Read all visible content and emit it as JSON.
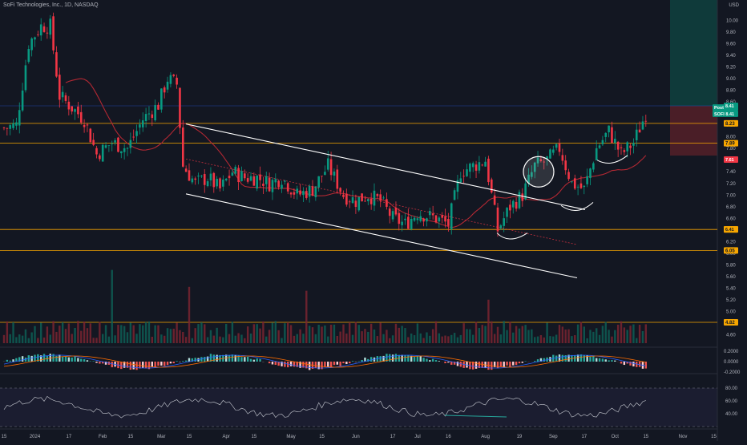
{
  "header": {
    "title": "SoFi Technologies, Inc., 1D, NASDAQ",
    "currency": "USD"
  },
  "chart_data": {
    "type": "candlestick",
    "title": "SoFi Technologies, Inc., 1D, NASDAQ",
    "price_ylim": [
      4.5,
      10.1
    ],
    "price_ticks": [
      "4.60",
      "4.80",
      "5.00",
      "5.20",
      "5.40",
      "5.60",
      "5.80",
      "6.00",
      "6.20",
      "6.40",
      "6.60",
      "6.80",
      "7.00",
      "7.20",
      "7.40",
      "7.60",
      "7.80",
      "8.00",
      "8.20",
      "8.40",
      "8.60",
      "8.80",
      "9.00",
      "9.20",
      "9.40",
      "9.60",
      "9.80",
      "10.00"
    ],
    "x_ticks": [
      {
        "label": "15",
        "i": 0
      },
      {
        "label": "2024",
        "i": 10
      },
      {
        "label": "17",
        "i": 21
      },
      {
        "label": "Feb",
        "i": 32
      },
      {
        "label": "15",
        "i": 41
      },
      {
        "label": "Mar",
        "i": 51
      },
      {
        "label": "15",
        "i": 60
      },
      {
        "label": "Apr",
        "i": 72
      },
      {
        "label": "15",
        "i": 81
      },
      {
        "label": "May",
        "i": 93
      },
      {
        "label": "15",
        "i": 103
      },
      {
        "label": "Jun",
        "i": 114
      },
      {
        "label": "17",
        "i": 126
      },
      {
        "label": "Jul",
        "i": 134
      },
      {
        "label": "16",
        "i": 144
      },
      {
        "label": "Aug",
        "i": 156
      },
      {
        "label": "19",
        "i": 167
      },
      {
        "label": "Sep",
        "i": 178
      },
      {
        "label": "17",
        "i": 188
      },
      {
        "label": "Oct",
        "i": 198
      },
      {
        "label": "15",
        "i": 208
      },
      {
        "label": "Nov",
        "i": 220
      },
      {
        "label": "15",
        "i": 230
      }
    ],
    "horizontal_levels": [
      {
        "price": 8.23,
        "label": "8.23"
      },
      {
        "price": 7.89,
        "label": "7.89"
      },
      {
        "price": 6.41,
        "label": "6.41"
      },
      {
        "price": 6.05,
        "label": "6.05"
      }
    ],
    "price_badges": [
      {
        "price": 8.42,
        "label": "Post 8.42",
        "color": "#089981"
      },
      {
        "price": 8.41,
        "label": "SOFI 8.41",
        "color": "#089981"
      },
      {
        "price": 8.41,
        "label": "8.41",
        "color": "#089981"
      },
      {
        "price": 7.61,
        "label": "7.61",
        "color": "#f23645"
      },
      {
        "price": 6.41,
        "label": "6.41",
        "color": "#f7a600"
      }
    ],
    "volume_badge": "4.82",
    "macd_ticks": [
      "0.2000",
      "0.0000",
      "-0.2000"
    ],
    "rsi_ticks": [
      "80.00",
      "60.00",
      "40.00"
    ],
    "colors": {
      "up": "#089981",
      "down": "#f23645",
      "level": "#f7a600",
      "ma": "#b22833",
      "channel": "#ffffff"
    }
  }
}
